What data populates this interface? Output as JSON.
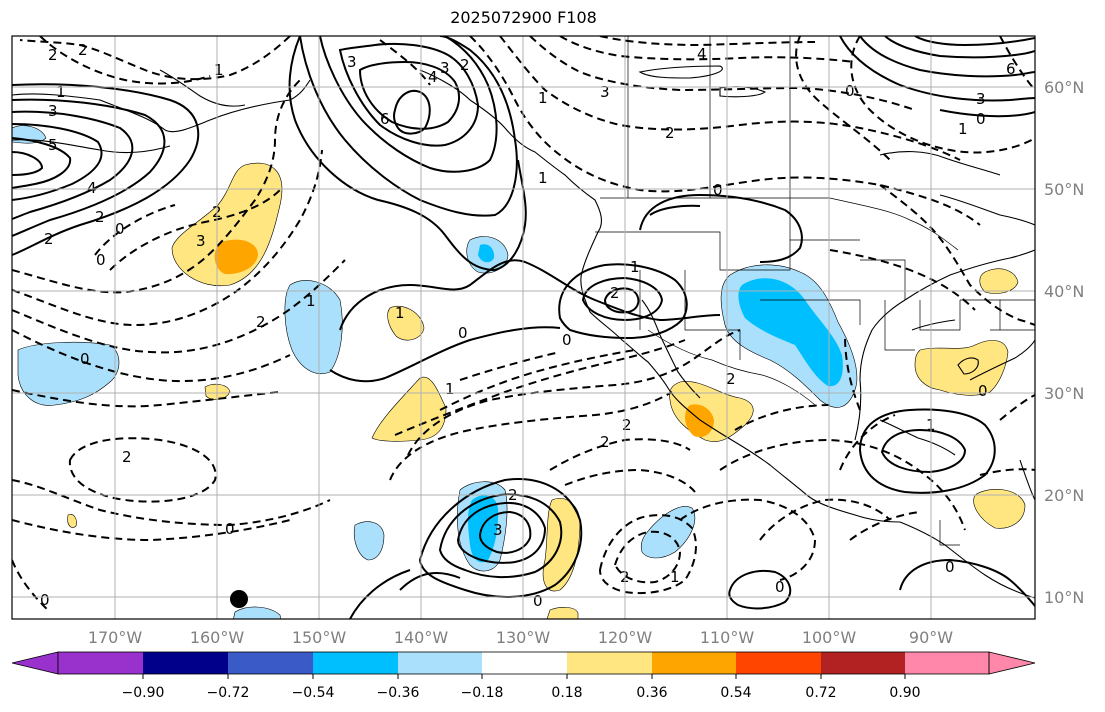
{
  "title": "2025072900 F108",
  "map": {
    "lon_range": [
      -180,
      -80
    ],
    "lat_range": [
      8,
      65
    ],
    "lon_ticks": [
      "170°W",
      "160°W",
      "150°W",
      "140°W",
      "130°W",
      "120°W",
      "110°W",
      "100°W",
      "90°W"
    ],
    "lat_ticks": [
      "60°N",
      "50°N",
      "40°N",
      "30°N",
      "20°N",
      "10°N"
    ],
    "grid": true
  },
  "colorbar": {
    "tick_labels": [
      "−0.90",
      "−0.72",
      "−0.54",
      "−0.36",
      "−0.18",
      "0.18",
      "0.36",
      "0.54",
      "0.72",
      "0.90"
    ],
    "colors": [
      "#9932cc",
      "#00008b",
      "#3a5bc7",
      "#00bfff",
      "#aae0fb",
      "#ffffff",
      "#ffe680",
      "#ffa500",
      "#ff4500",
      "#b22222",
      "#ff88aa"
    ],
    "extend": "both"
  },
  "contour_labels": {
    "l2a": "2",
    "l2b": "2",
    "l1a": "1",
    "l3a": "3",
    "l5a": "5",
    "l4a": "4",
    "l2c": "2",
    "l0a": "0",
    "l1b": "1",
    "l3b": "3",
    "l2d": "2",
    "l0b": "0",
    "l1c": "1",
    "l2e": "2",
    "l3c": "3",
    "l4b": "4",
    "l6a": "6",
    "l1d": "1",
    "l3d": "3",
    "l2f": "2",
    "l0c": "0",
    "l1e": "1",
    "l2g": "2",
    "l1f": "1",
    "l0d": "0",
    "l0e": "0",
    "l2h": "2",
    "l2i": "2",
    "l2j": "2",
    "l1g": "1",
    "l2k": "2",
    "l0f": "0",
    "l2l": "2",
    "l0g": "0",
    "l2m": "2",
    "l3e": "3",
    "l0h": "0",
    "l2n": "2",
    "l1h": "1",
    "l0i": "0",
    "l0j": "0",
    "l0k": "0",
    "l1i": "1",
    "l0l": "0",
    "l4c": "4",
    "l3f": "3",
    "l0m": "0",
    "l2o": "2",
    "l1j": "1",
    "l6b": "6",
    "l3g": "3",
    "l0n": "0",
    "l1k": "1"
  }
}
